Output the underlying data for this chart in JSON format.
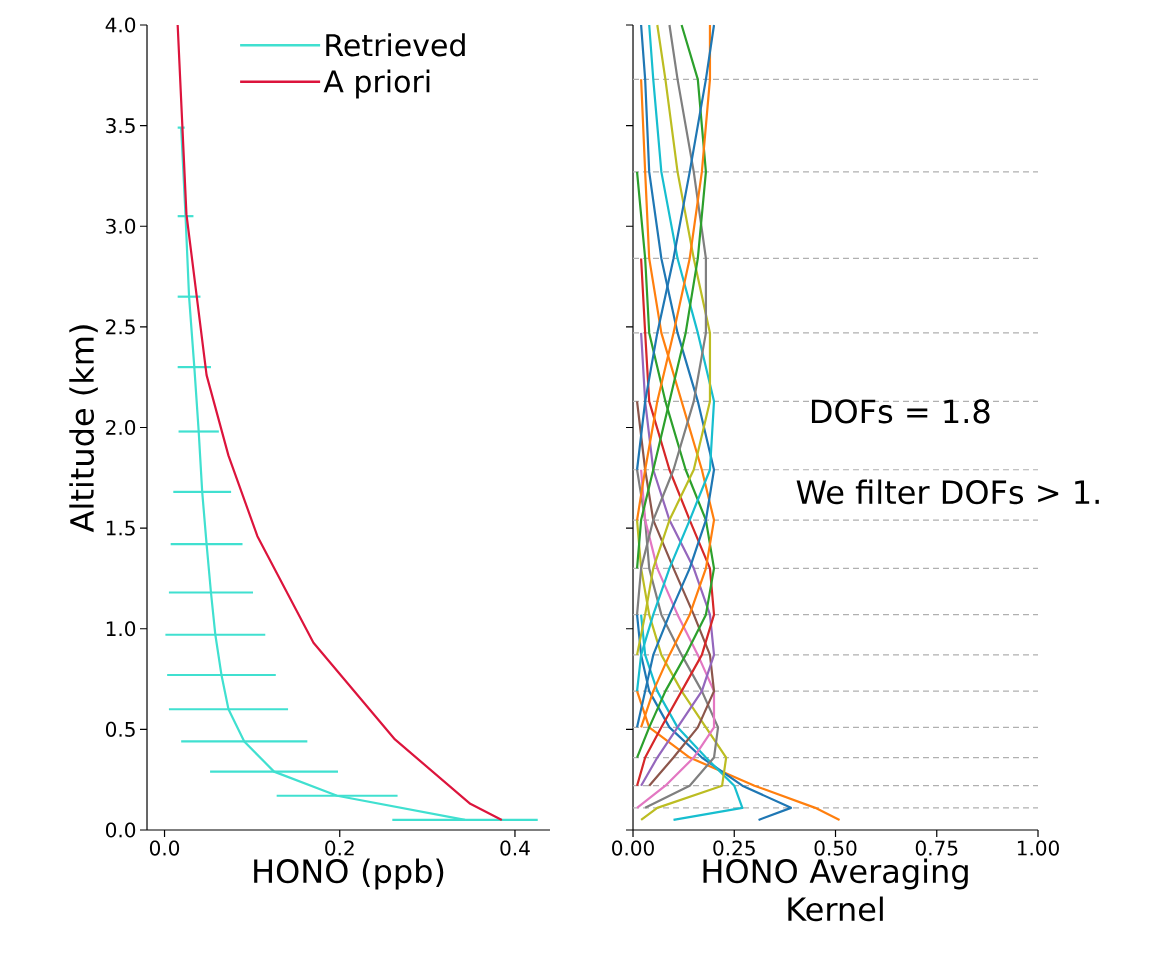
{
  "chart_data": [
    {
      "type": "line",
      "xlabel": "HONO (ppb)",
      "ylabel": "Altitude (km)",
      "xlim": [
        -0.02,
        0.44
      ],
      "ylim": [
        0,
        4
      ],
      "xticks": [
        {
          "value": 0,
          "label": "0.0"
        },
        0.2,
        0.4
      ],
      "yticks": [
        {
          "value": 0,
          "label": "0.0"
        },
        0.5,
        {
          "value": 1,
          "label": "1.0"
        },
        1.5,
        {
          "value": 2,
          "label": "2.0"
        },
        2.5,
        {
          "value": 3,
          "label": "3.0"
        },
        3.5,
        {
          "value": 4,
          "label": "4.0"
        }
      ],
      "legend": "top right",
      "marker": "none",
      "series": [
        {
          "name": "Retrieved",
          "color": "#40e0d0",
          "x": [
            0.343,
            0.197,
            0.125,
            0.091,
            0.073,
            0.065,
            0.058,
            0.053,
            0.048,
            0.043,
            0.039,
            0.034,
            0.028,
            0.024,
            0.019,
            null
          ],
          "values": [
            0.05,
            0.17,
            0.29,
            0.44,
            0.6,
            0.77,
            0.97,
            1.18,
            1.42,
            1.68,
            1.98,
            2.3,
            2.65,
            3.05,
            3.49,
            null
          ],
          "xerrors": [
            0.083,
            0.069,
            0.073,
            0.072,
            0.068,
            0.062,
            0.057,
            0.048,
            0.041,
            0.033,
            0.023,
            0.019,
            0.013,
            0.009,
            0.004,
            null
          ]
        },
        {
          "name": "A priori",
          "color": "#dc143c",
          "x": [
            0.385,
            0.349,
            0.263,
            0.17,
            0.106,
            0.073,
            0.048,
            0.025,
            0.015
          ],
          "values": [
            0.05,
            0.13,
            0.45,
            0.93,
            1.46,
            1.86,
            2.26,
            3.06,
            4.0
          ]
        }
      ]
    },
    {
      "type": "line",
      "xlabel": "HONO Averaging Kernel",
      "xlim": [
        0,
        1
      ],
      "ylim": [
        0,
        4
      ],
      "xticks": [
        {
          "value": 0,
          "label": "0.00"
        },
        0.25,
        {
          "value": 0.5,
          "label": "0.50"
        },
        0.75,
        {
          "value": 1,
          "label": "1.00"
        }
      ],
      "yticks": [
        {
          "value": 0,
          "label": null
        },
        {
          "value": 0.5,
          "label": null
        },
        {
          "value": 1,
          "label": null
        },
        {
          "value": 1.5,
          "label": null
        },
        {
          "value": 2,
          "label": null
        },
        {
          "value": 2.5,
          "label": null
        },
        {
          "value": 3,
          "label": null
        },
        {
          "value": 3.5,
          "label": null
        },
        {
          "value": 4,
          "label": null
        }
      ],
      "tick_labels": "x",
      "marker": "none",
      "annotations": [
        "DOFs = 1.8",
        "We filter DOFs > 1."
      ],
      "ref_lines": [
        {
          "axis": "y",
          "value": 0.11,
          "color": "#b0b0b0",
          "line_style": "dashed"
        },
        {
          "axis": "y",
          "value": 0.22,
          "color": "#b0b0b0",
          "line_style": "dashed"
        },
        {
          "axis": "y",
          "value": 0.36,
          "color": "#b0b0b0",
          "line_style": "dashed"
        },
        {
          "axis": "y",
          "value": 0.51,
          "color": "#b0b0b0",
          "line_style": "dashed"
        },
        {
          "axis": "y",
          "value": 0.69,
          "color": "#b0b0b0",
          "line_style": "dashed"
        },
        {
          "axis": "y",
          "value": 0.87,
          "color": "#b0b0b0",
          "line_style": "dashed"
        },
        {
          "axis": "y",
          "value": 1.07,
          "color": "#b0b0b0",
          "line_style": "dashed"
        },
        {
          "axis": "y",
          "value": 1.3,
          "color": "#b0b0b0",
          "line_style": "dashed"
        },
        {
          "axis": "y",
          "value": 1.54,
          "color": "#b0b0b0",
          "line_style": "dashed"
        },
        {
          "axis": "y",
          "value": 1.79,
          "color": "#b0b0b0",
          "line_style": "dashed"
        },
        {
          "axis": "y",
          "value": 2.13,
          "color": "#b0b0b0",
          "line_style": "dashed"
        },
        {
          "axis": "y",
          "value": 2.47,
          "color": "#b0b0b0",
          "line_style": "dashed"
        },
        {
          "axis": "y",
          "value": 2.84,
          "color": "#b0b0b0",
          "line_style": "dashed"
        },
        {
          "axis": "y",
          "value": 3.27,
          "color": "#b0b0b0",
          "line_style": "dashed"
        },
        {
          "axis": "y",
          "value": 3.73,
          "color": "#b0b0b0",
          "line_style": "dashed"
        }
      ],
      "series": [
        {
          "color": "#ff7f0e",
          "x": [
            0.51,
            0.45,
            0.3,
            0.14,
            0.04,
            0.01
          ],
          "values": [
            0.05,
            0.11,
            0.22,
            0.36,
            0.51,
            0.69
          ]
        },
        {
          "color": "#1f77b4",
          "x": [
            0.31,
            0.39,
            0.27,
            0.17,
            0.09,
            0.04,
            0.02,
            0.01
          ],
          "values": [
            0.05,
            0.11,
            0.22,
            0.36,
            0.51,
            0.69,
            0.87,
            1.07
          ]
        },
        {
          "color": "#17becf",
          "x": [
            0.1,
            0.27,
            0.25,
            0.18,
            0.11,
            0.06,
            0.03,
            0.02
          ],
          "values": [
            0.05,
            0.11,
            0.22,
            0.36,
            0.51,
            0.69,
            0.87,
            1.07
          ]
        },
        {
          "color": "#bcbd22",
          "x": [
            0.02,
            0.06,
            0.22,
            0.23,
            0.18,
            0.12,
            0.07,
            0.04,
            0.02,
            0.01
          ],
          "values": [
            0.05,
            0.11,
            0.22,
            0.36,
            0.51,
            0.69,
            0.87,
            1.07,
            1.3,
            1.54
          ]
        },
        {
          "color": "#7f7f7f",
          "x": [
            0.03,
            0.14,
            0.2,
            0.21,
            0.17,
            0.12,
            0.07,
            0.04,
            0.03,
            0.01
          ],
          "values": [
            0.11,
            0.22,
            0.36,
            0.51,
            0.69,
            0.87,
            1.07,
            1.3,
            1.54,
            1.79
          ]
        },
        {
          "color": "#e377c2",
          "x": [
            0.01,
            0.08,
            0.15,
            0.2,
            0.2,
            0.16,
            0.11,
            0.06,
            0.03,
            0.02
          ],
          "values": [
            0.11,
            0.22,
            0.36,
            0.51,
            0.69,
            0.87,
            1.07,
            1.3,
            1.54,
            1.79
          ]
        },
        {
          "color": "#8c564b",
          "x": [
            0.04,
            0.1,
            0.16,
            0.2,
            0.19,
            0.15,
            0.1,
            0.05,
            0.03,
            0.01
          ],
          "values": [
            0.22,
            0.36,
            0.51,
            0.69,
            0.87,
            1.07,
            1.3,
            1.54,
            1.79,
            2.13
          ]
        },
        {
          "color": "#9467bd",
          "x": [
            0.02,
            0.06,
            0.11,
            0.17,
            0.2,
            0.19,
            0.15,
            0.09,
            0.05,
            0.03,
            0.02
          ],
          "values": [
            0.22,
            0.36,
            0.51,
            0.69,
            0.87,
            1.07,
            1.3,
            1.54,
            1.79,
            2.13,
            2.47
          ]
        },
        {
          "color": "#d62728",
          "x": [
            0.01,
            0.03,
            0.07,
            0.12,
            0.17,
            0.2,
            0.19,
            0.14,
            0.09,
            0.04,
            0.03,
            0.02
          ],
          "values": [
            0.22,
            0.36,
            0.51,
            0.69,
            0.87,
            1.07,
            1.3,
            1.54,
            1.79,
            2.13,
            2.47,
            2.84
          ]
        },
        {
          "color": "#2ca02c",
          "x": [
            0.01,
            0.04,
            0.08,
            0.13,
            0.18,
            0.2,
            0.18,
            0.13,
            0.08,
            0.04,
            0.03,
            0.01
          ],
          "values": [
            0.36,
            0.51,
            0.69,
            0.87,
            1.07,
            1.3,
            1.54,
            1.79,
            2.13,
            2.47,
            2.84,
            3.27
          ]
        },
        {
          "color": "#ff7f0e",
          "x": [
            0.02,
            0.05,
            0.09,
            0.14,
            0.18,
            0.2,
            0.17,
            0.12,
            0.07,
            0.04,
            0.03,
            0.02
          ],
          "values": [
            0.51,
            0.69,
            0.87,
            1.07,
            1.3,
            1.54,
            1.79,
            2.13,
            2.47,
            2.84,
            3.27,
            3.73
          ]
        },
        {
          "color": "#1f77b4",
          "x": [
            0.01,
            0.03,
            0.05,
            0.09,
            0.14,
            0.18,
            0.2,
            0.16,
            0.11,
            0.07,
            0.04,
            0.03,
            0.02
          ],
          "values": [
            0.51,
            0.69,
            0.87,
            1.07,
            1.3,
            1.54,
            1.79,
            2.13,
            2.47,
            2.84,
            3.27,
            3.73,
            4.0
          ]
        },
        {
          "color": "#17becf",
          "x": [
            0.01,
            0.02,
            0.05,
            0.09,
            0.14,
            0.19,
            0.2,
            0.16,
            0.11,
            0.07,
            0.05,
            0.04
          ],
          "values": [
            0.69,
            0.87,
            1.07,
            1.3,
            1.54,
            1.79,
            2.13,
            2.47,
            2.84,
            3.27,
            3.73,
            4.0
          ]
        },
        {
          "color": "#bcbd22",
          "x": [
            0.01,
            0.03,
            0.05,
            0.09,
            0.15,
            0.19,
            0.19,
            0.15,
            0.11,
            0.08,
            0.06
          ],
          "values": [
            0.87,
            1.07,
            1.3,
            1.54,
            1.79,
            2.13,
            2.47,
            2.84,
            3.27,
            3.73,
            4.0
          ]
        },
        {
          "color": "#7f7f7f",
          "x": [
            0.01,
            0.02,
            0.05,
            0.1,
            0.15,
            0.18,
            0.18,
            0.15,
            0.11,
            0.09
          ],
          "values": [
            1.07,
            1.3,
            1.54,
            1.79,
            2.13,
            2.47,
            2.84,
            3.27,
            3.73,
            4.0
          ]
        },
        {
          "color": "#2ca02c",
          "x": [
            0.01,
            0.02,
            0.05,
            0.09,
            0.13,
            0.16,
            0.18,
            0.16,
            0.12
          ],
          "values": [
            1.3,
            1.54,
            1.79,
            2.13,
            2.47,
            2.84,
            3.27,
            3.73,
            4.0
          ]
        },
        {
          "color": "#ff7f0e",
          "x": [
            0.01,
            0.03,
            0.06,
            0.1,
            0.14,
            0.17,
            0.19,
            0.19
          ],
          "values": [
            1.54,
            1.79,
            2.13,
            2.47,
            2.84,
            3.27,
            3.73,
            4.0
          ]
        },
        {
          "color": "#1f77b4",
          "x": [
            0.01,
            0.03,
            0.06,
            0.1,
            0.14,
            0.18,
            0.2
          ],
          "values": [
            1.79,
            2.13,
            2.47,
            2.84,
            3.27,
            3.73,
            4.0
          ]
        }
      ]
    }
  ]
}
